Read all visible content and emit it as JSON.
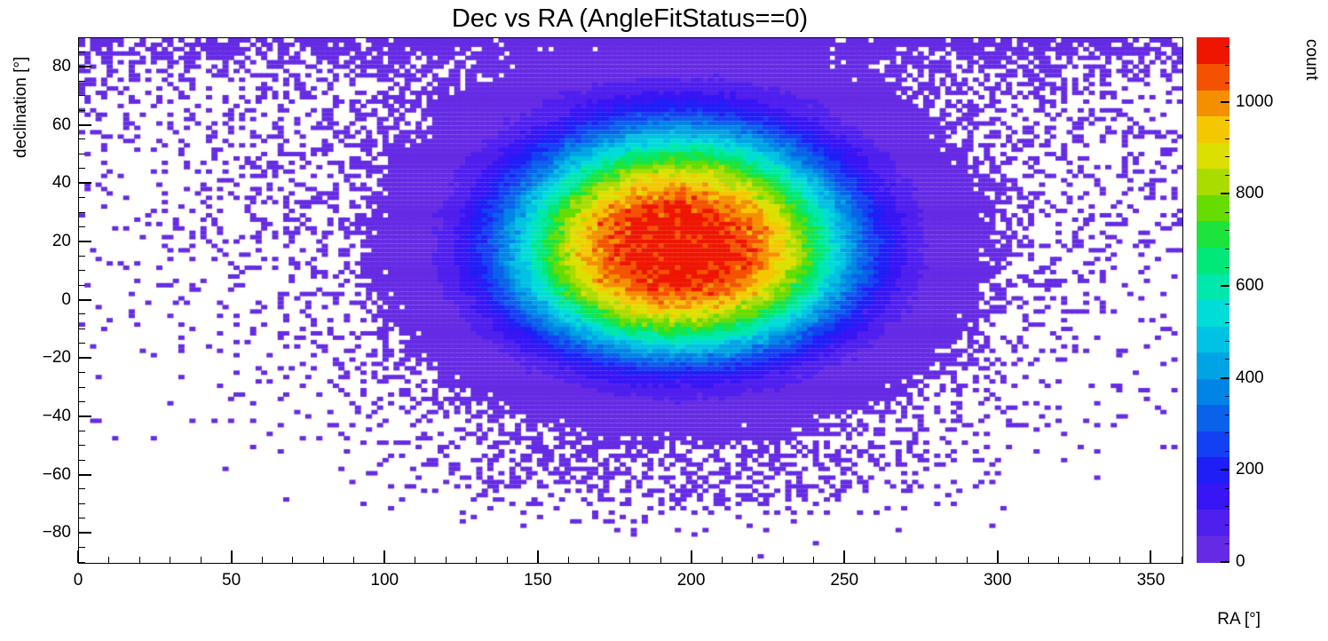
{
  "title": "Dec vs RA (AngleFitStatus==0)",
  "axes": {
    "x": {
      "label": "RA [°]",
      "min": 0,
      "max": 360,
      "major_ticks": [
        0,
        50,
        100,
        150,
        200,
        250,
        300,
        350
      ],
      "tick_labels": [
        "0",
        "50",
        "100",
        "150",
        "200",
        "250",
        "300",
        "350"
      ],
      "minor_step": 10
    },
    "y": {
      "label": "declination [°]",
      "min": -90,
      "max": 90,
      "major_ticks": [
        -80,
        -60,
        -40,
        -20,
        0,
        20,
        40,
        60,
        80
      ],
      "tick_labels": [
        "−80",
        "−60",
        "−40",
        "−20",
        "0",
        "20",
        "40",
        "60",
        "80"
      ],
      "minor_step": 5
    },
    "z": {
      "label": "count",
      "min": 0,
      "max": 1140,
      "major_ticks": [
        0,
        200,
        400,
        600,
        800,
        1000
      ],
      "tick_labels": [
        "0",
        "200",
        "400",
        "600",
        "800",
        "1000"
      ],
      "minor_step": 40
    }
  },
  "chart_data": {
    "type": "heatmap",
    "title": "Dec vs RA (AngleFitStatus==0)",
    "xlabel": "RA [°]",
    "ylabel": "declination [°]",
    "zlabel": "count",
    "xlim": [
      0,
      360
    ],
    "ylim": [
      -90,
      90
    ],
    "zlim": [
      0,
      1140
    ],
    "background": "#ffffff",
    "bins": {
      "nx": 200,
      "ny": 120
    },
    "peak": {
      "ra": 196,
      "dec": 17,
      "max_count": 1130
    },
    "distribution": {
      "model": "gaussian_core_plus_polar_halo",
      "core": {
        "center_ra": 196,
        "center_dec": 17,
        "sigma_ra": 44,
        "sigma_dec_up": 33,
        "sigma_dec_down": 28,
        "amplitude": 1130,
        "falloff_exponent": 3.0,
        "tail_cut_start": 1.9,
        "tail_cut_coeff": 3.0,
        "tail_cut_pow": 1.5
      },
      "halo": {
        "amplitude": 0.8,
        "width_base": 70,
        "width_slope": 0.8,
        "width_scale": 0.55,
        "polar_boost": 2.2,
        "polar_scale": 9,
        "bottom_cutoff_dec": -68,
        "bottom_cutoff_width": 4
      },
      "seed": 20240613
    },
    "palette": [
      "#652be4",
      "#4f1fee",
      "#3715f4",
      "#1f1ef6",
      "#1340f2",
      "#0a62ea",
      "#0084e6",
      "#00a4e4",
      "#00c2e2",
      "#00dcd8",
      "#00e8ac",
      "#00e878",
      "#1ce43c",
      "#66dc00",
      "#aadc00",
      "#dce000",
      "#f4c800",
      "#f49000",
      "#f45200",
      "#ee1600"
    ]
  }
}
